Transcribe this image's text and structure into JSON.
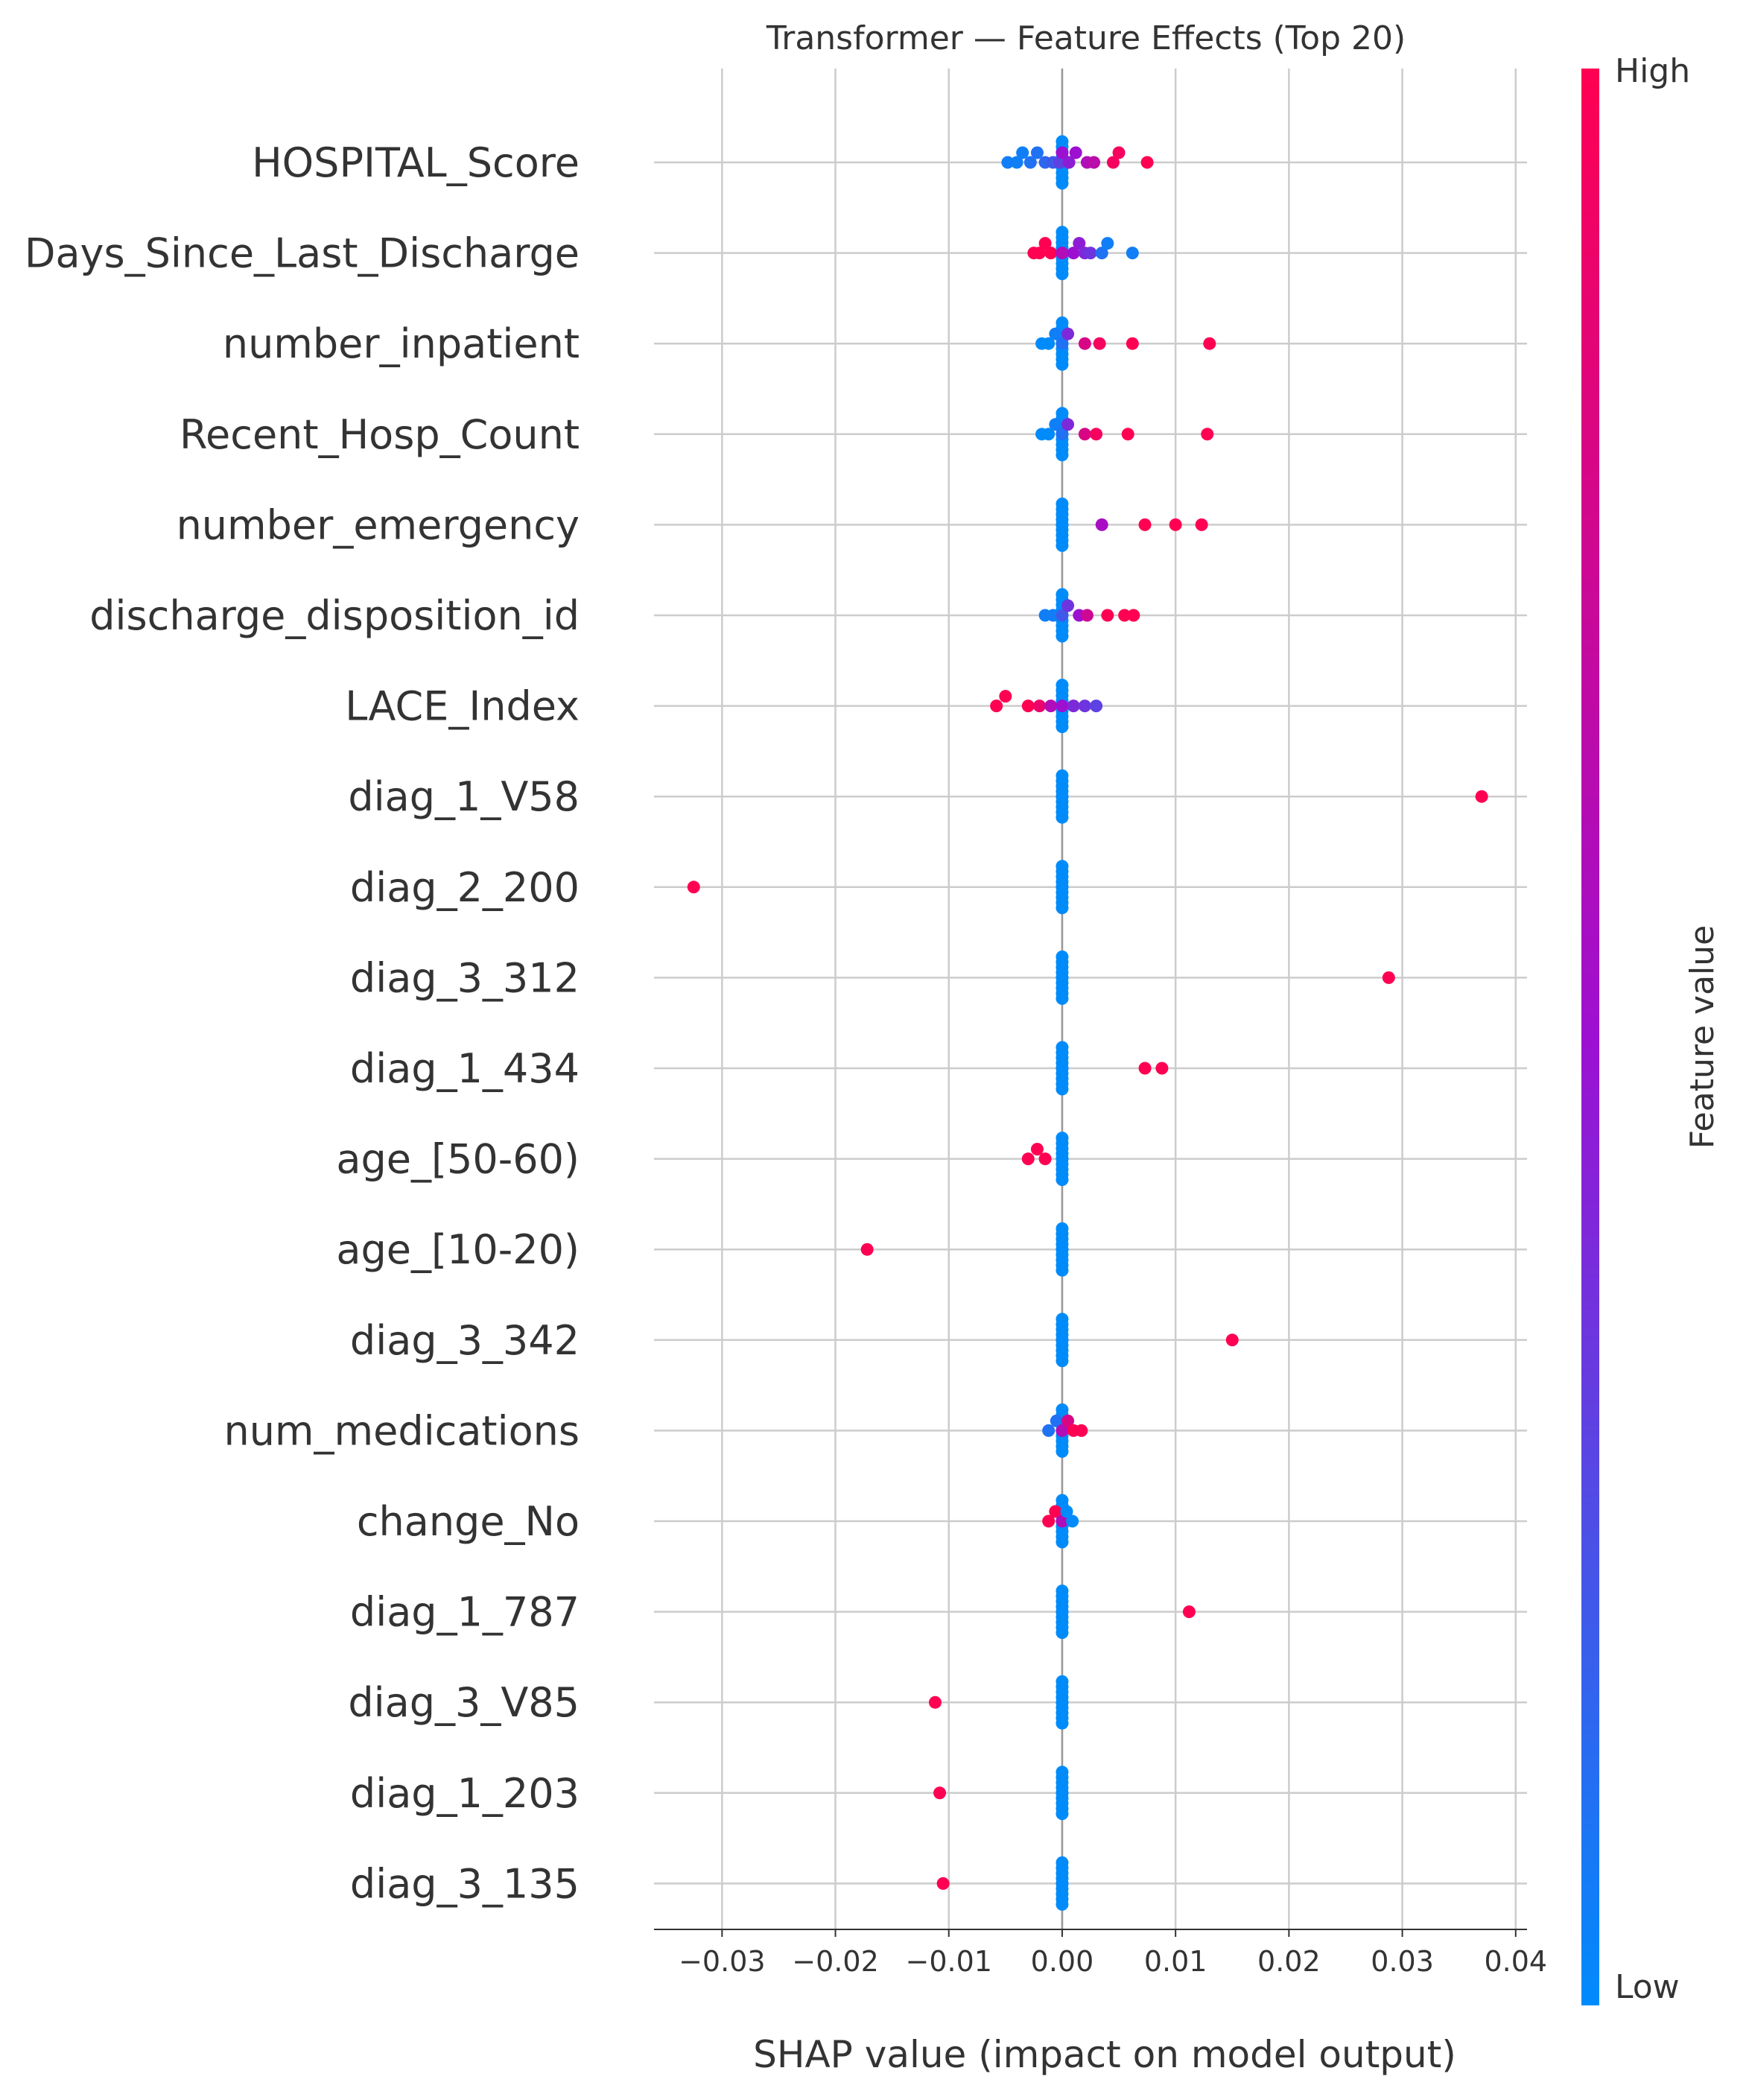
{
  "chart_data": {
    "type": "scatter",
    "title": "Transformer — Feature Effects (Top 20)",
    "xlabel": "SHAP value (impact on model output)",
    "xlim": [
      -0.036,
      0.041
    ],
    "xticks": [
      -0.03,
      -0.02,
      -0.01,
      0.0,
      0.01,
      0.02,
      0.03,
      0.04
    ],
    "xtick_labels": [
      "−0.03",
      "−0.02",
      "−0.01",
      "0.00",
      "0.01",
      "0.02",
      "0.03",
      "0.04"
    ],
    "grid": true,
    "colorbar": {
      "label": "Feature value",
      "high_label": "High",
      "low_label": "Low",
      "low_color": "#008bfb",
      "mid_color": "#9d10d1",
      "high_color": "#ff0052"
    },
    "features": [
      {
        "name": "HOSPITAL_Score",
        "points": [
          {
            "x": -0.0048,
            "v": 0.05
          },
          {
            "x": -0.004,
            "v": 0.05
          },
          {
            "x": -0.0035,
            "v": 0.05
          },
          {
            "x": -0.0028,
            "v": 0.1
          },
          {
            "x": -0.0022,
            "v": 0.1
          },
          {
            "x": -0.0015,
            "v": 0.15
          },
          {
            "x": -0.0008,
            "v": 0.2
          },
          {
            "x": -0.0002,
            "v": 0.3
          },
          {
            "x": 0.0,
            "v": 0.5
          },
          {
            "x": 0.0006,
            "v": 0.45
          },
          {
            "x": 0.0012,
            "v": 0.5
          },
          {
            "x": 0.0022,
            "v": 0.6
          },
          {
            "x": 0.0028,
            "v": 0.65
          },
          {
            "x": 0.0045,
            "v": 0.95
          },
          {
            "x": 0.005,
            "v": 0.95
          },
          {
            "x": 0.0075,
            "v": 1.0
          }
        ]
      },
      {
        "name": "Days_Since_Last_Discharge",
        "points": [
          {
            "x": -0.0025,
            "v": 1.0
          },
          {
            "x": -0.002,
            "v": 1.0
          },
          {
            "x": -0.0015,
            "v": 1.0
          },
          {
            "x": -0.001,
            "v": 1.0
          },
          {
            "x": 0.0,
            "v": 0.6
          },
          {
            "x": 0.001,
            "v": 0.5
          },
          {
            "x": 0.0015,
            "v": 0.45
          },
          {
            "x": 0.002,
            "v": 0.4
          },
          {
            "x": 0.0025,
            "v": 0.35
          },
          {
            "x": 0.0035,
            "v": 0.1
          },
          {
            "x": 0.004,
            "v": 0.05
          },
          {
            "x": 0.0062,
            "v": 0.05
          }
        ]
      },
      {
        "name": "number_inpatient",
        "points": [
          {
            "x": -0.0018,
            "v": 0.0
          },
          {
            "x": -0.0012,
            "v": 0.0
          },
          {
            "x": -0.0006,
            "v": 0.05
          },
          {
            "x": 0.0,
            "v": 0.1
          },
          {
            "x": 0.0005,
            "v": 0.4
          },
          {
            "x": 0.002,
            "v": 0.8
          },
          {
            "x": 0.0033,
            "v": 0.95
          },
          {
            "x": 0.0062,
            "v": 1.0
          },
          {
            "x": 0.013,
            "v": 1.0
          }
        ]
      },
      {
        "name": "Recent_Hosp_Count",
        "points": [
          {
            "x": -0.0018,
            "v": 0.0
          },
          {
            "x": -0.0012,
            "v": 0.0
          },
          {
            "x": -0.0006,
            "v": 0.05
          },
          {
            "x": 0.0,
            "v": 0.1
          },
          {
            "x": 0.0005,
            "v": 0.4
          },
          {
            "x": 0.002,
            "v": 0.8
          },
          {
            "x": 0.003,
            "v": 0.95
          },
          {
            "x": 0.0058,
            "v": 1.0
          },
          {
            "x": 0.0128,
            "v": 1.0
          }
        ]
      },
      {
        "name": "number_emergency",
        "points": [
          {
            "x": 0.0,
            "v": 0.0
          },
          {
            "x": 0.0035,
            "v": 0.55
          },
          {
            "x": 0.0073,
            "v": 1.0
          },
          {
            "x": 0.01,
            "v": 1.0
          },
          {
            "x": 0.0123,
            "v": 1.0
          }
        ]
      },
      {
        "name": "discharge_disposition_id",
        "points": [
          {
            "x": -0.0015,
            "v": 0.05
          },
          {
            "x": -0.0008,
            "v": 0.05
          },
          {
            "x": 0.0,
            "v": 0.2
          },
          {
            "x": 0.0005,
            "v": 0.35
          },
          {
            "x": 0.0015,
            "v": 0.5
          },
          {
            "x": 0.0022,
            "v": 0.75
          },
          {
            "x": 0.004,
            "v": 1.0
          },
          {
            "x": 0.0055,
            "v": 1.0
          },
          {
            "x": 0.0063,
            "v": 1.0
          }
        ]
      },
      {
        "name": "LACE_Index",
        "points": [
          {
            "x": -0.0058,
            "v": 1.0
          },
          {
            "x": -0.005,
            "v": 1.0
          },
          {
            "x": -0.003,
            "v": 1.0
          },
          {
            "x": -0.002,
            "v": 0.9
          },
          {
            "x": -0.001,
            "v": 0.6
          },
          {
            "x": 0.0,
            "v": 0.5
          },
          {
            "x": 0.001,
            "v": 0.4
          },
          {
            "x": 0.002,
            "v": 0.35
          },
          {
            "x": 0.003,
            "v": 0.3
          }
        ]
      },
      {
        "name": "diag_1_V58",
        "points": [
          {
            "x": 0.0,
            "v": 0.0
          },
          {
            "x": 0.037,
            "v": 1.0
          }
        ]
      },
      {
        "name": "diag_2_200",
        "points": [
          {
            "x": 0.0,
            "v": 0.0
          },
          {
            "x": -0.0325,
            "v": 1.0
          }
        ]
      },
      {
        "name": "diag_3_312",
        "points": [
          {
            "x": 0.0,
            "v": 0.0
          },
          {
            "x": 0.0288,
            "v": 1.0
          }
        ]
      },
      {
        "name": "diag_1_434",
        "points": [
          {
            "x": 0.0,
            "v": 0.0
          },
          {
            "x": 0.0073,
            "v": 1.0
          },
          {
            "x": 0.0088,
            "v": 1.0
          }
        ]
      },
      {
        "name": "age_[50-60)",
        "points": [
          {
            "x": 0.0,
            "v": 0.0
          },
          {
            "x": -0.003,
            "v": 1.0
          },
          {
            "x": -0.0022,
            "v": 1.0
          },
          {
            "x": -0.0015,
            "v": 1.0
          }
        ]
      },
      {
        "name": "age_[10-20)",
        "points": [
          {
            "x": 0.0,
            "v": 0.0
          },
          {
            "x": -0.0172,
            "v": 1.0
          }
        ]
      },
      {
        "name": "diag_3_342",
        "points": [
          {
            "x": 0.0,
            "v": 0.0
          },
          {
            "x": 0.015,
            "v": 1.0
          }
        ]
      },
      {
        "name": "num_medications",
        "points": [
          {
            "x": -0.0012,
            "v": 0.1
          },
          {
            "x": -0.0005,
            "v": 0.1
          },
          {
            "x": 0.0,
            "v": 0.6
          },
          {
            "x": 0.0005,
            "v": 0.8
          },
          {
            "x": 0.001,
            "v": 1.0
          },
          {
            "x": 0.0017,
            "v": 1.0
          }
        ]
      },
      {
        "name": "change_No",
        "points": [
          {
            "x": -0.0012,
            "v": 1.0
          },
          {
            "x": -0.0006,
            "v": 1.0
          },
          {
            "x": 0.0,
            "v": 0.6
          },
          {
            "x": 0.0004,
            "v": 0.0
          },
          {
            "x": 0.0009,
            "v": 0.0
          }
        ]
      },
      {
        "name": "diag_1_787",
        "points": [
          {
            "x": 0.0,
            "v": 0.0
          },
          {
            "x": 0.0112,
            "v": 1.0
          }
        ]
      },
      {
        "name": "diag_3_V85",
        "points": [
          {
            "x": 0.0,
            "v": 0.0
          },
          {
            "x": -0.0112,
            "v": 1.0
          }
        ]
      },
      {
        "name": "diag_1_203",
        "points": [
          {
            "x": 0.0,
            "v": 0.0
          },
          {
            "x": -0.0108,
            "v": 1.0
          }
        ]
      },
      {
        "name": "diag_3_135",
        "points": [
          {
            "x": 0.0,
            "v": 0.0
          },
          {
            "x": -0.0105,
            "v": 1.0
          }
        ]
      }
    ]
  }
}
